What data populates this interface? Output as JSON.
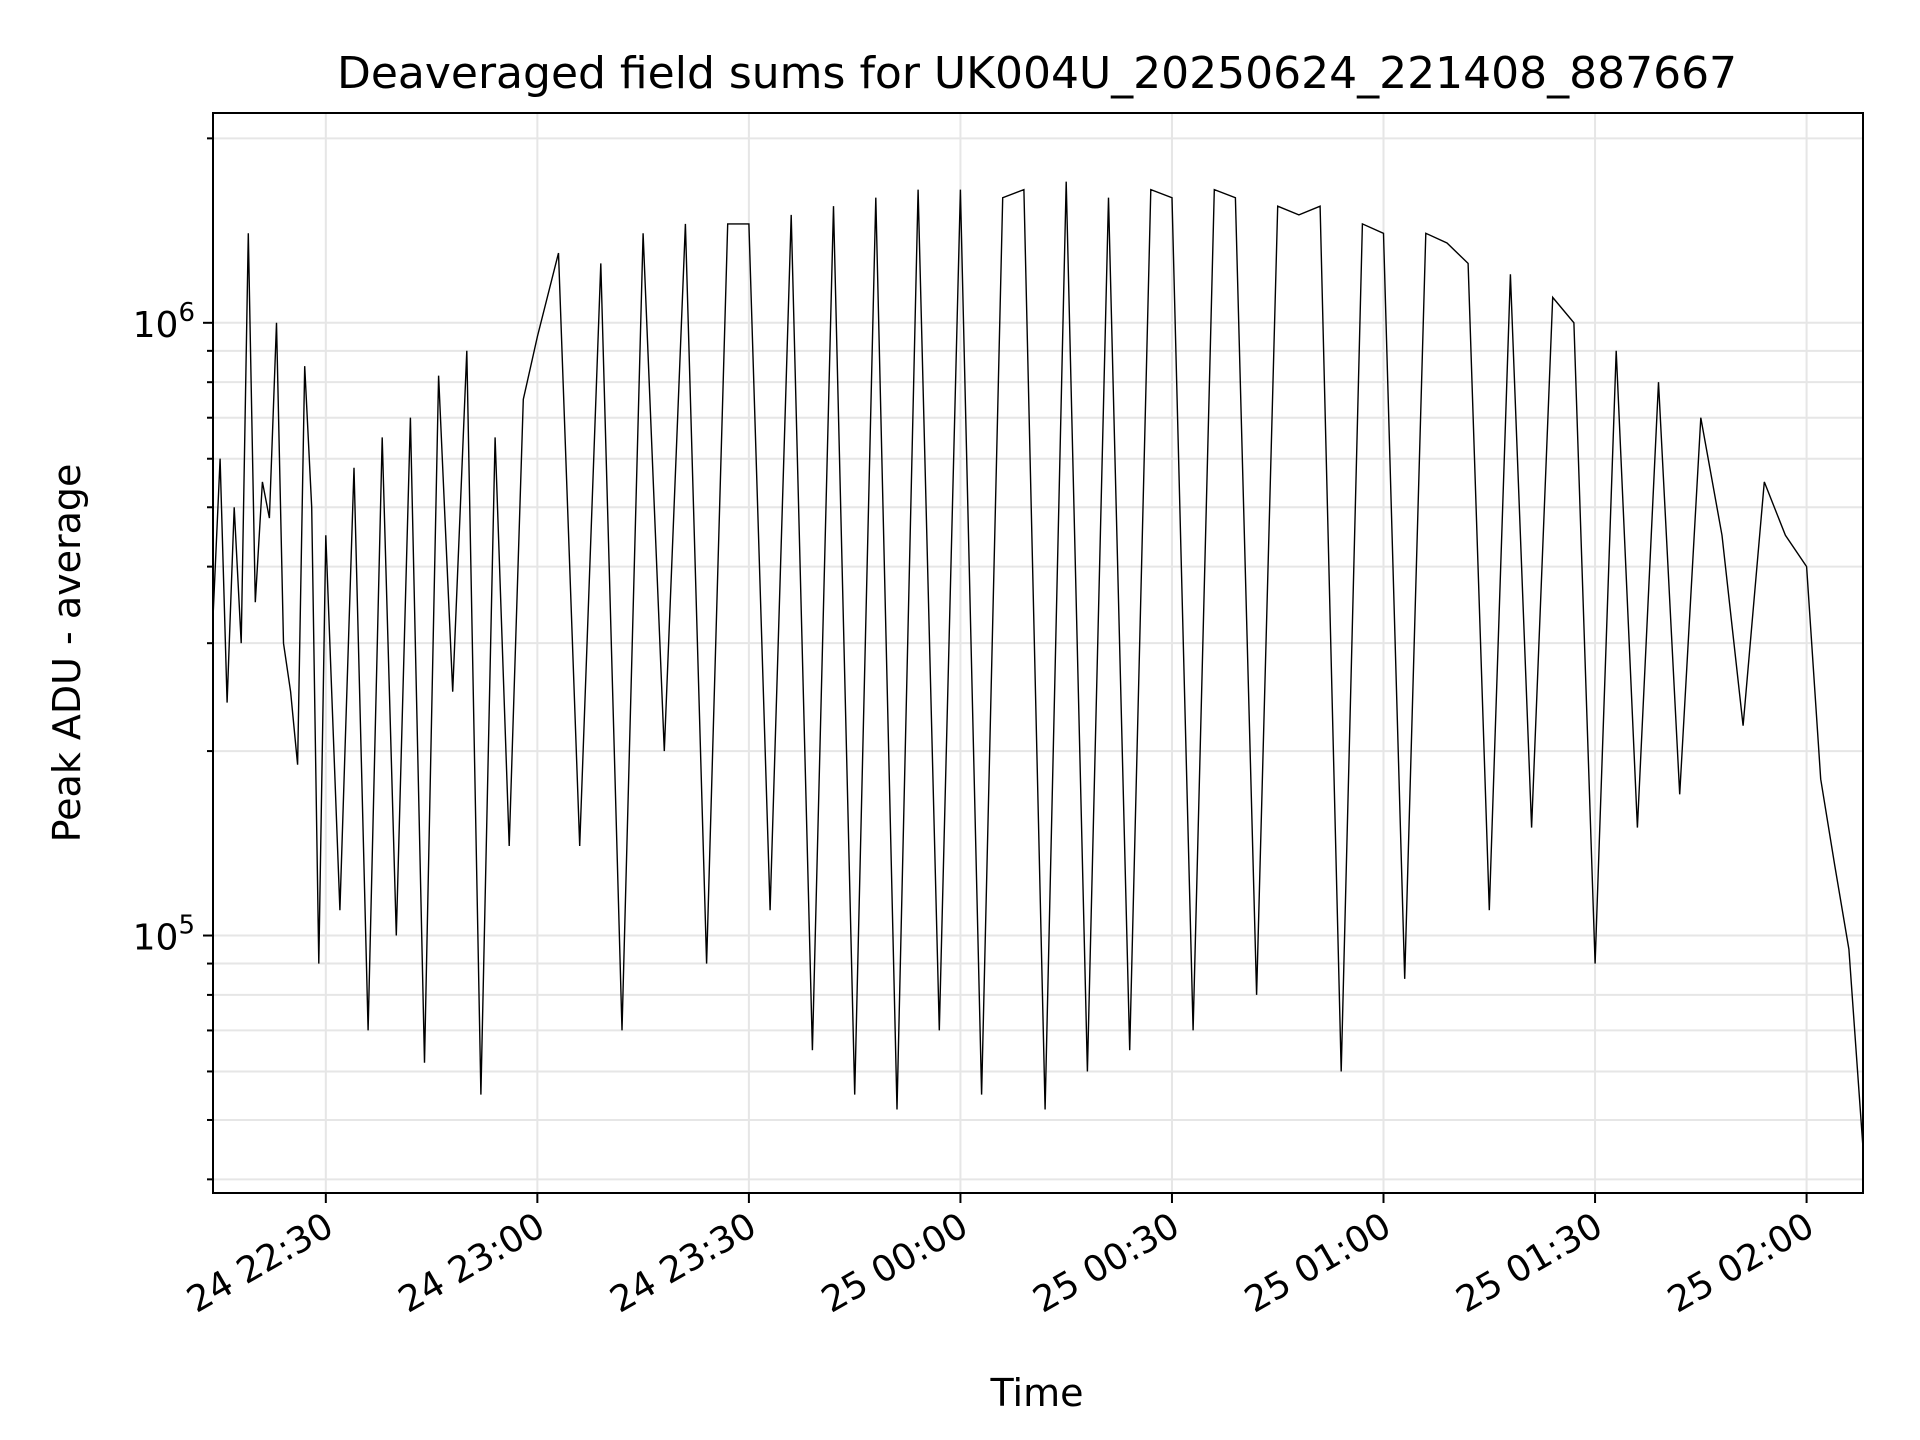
{
  "chart_data": {
    "type": "line",
    "title": "Deaveraged field sums for UK004U_20250624_221408_887667",
    "xlabel": "Time",
    "ylabel": "Peak ADU - average",
    "yscale": "log",
    "ylim": [
      38000,
      2200000
    ],
    "xlim": [
      "2025-06-24 22:14",
      "2025-06-25 02:08"
    ],
    "grid": true,
    "line_color": "#000000",
    "grid_color": "#e6e6e6",
    "x_ticks": [
      {
        "value": "2025-06-24 22:30",
        "label": "24 22:30"
      },
      {
        "value": "2025-06-24 23:00",
        "label": "24 23:00"
      },
      {
        "value": "2025-06-24 23:30",
        "label": "24 23:30"
      },
      {
        "value": "2025-06-25 00:00",
        "label": "25 00:00"
      },
      {
        "value": "2025-06-25 00:30",
        "label": "25 00:30"
      },
      {
        "value": "2025-06-25 01:00",
        "label": "25 01:00"
      },
      {
        "value": "2025-06-25 01:30",
        "label": "25 01:30"
      },
      {
        "value": "2025-06-25 02:00",
        "label": "25 02:00"
      }
    ],
    "y_ticks": [
      {
        "value": 100000,
        "base": "10",
        "exp": "5"
      },
      {
        "value": 1000000,
        "base": "10",
        "exp": "6"
      }
    ],
    "series": [
      {
        "x": [
          "2025-06-24 22:14",
          "2025-06-24 22:15",
          "2025-06-24 22:16",
          "2025-06-24 22:17",
          "2025-06-24 22:18",
          "2025-06-24 22:19",
          "2025-06-24 22:20",
          "2025-06-24 22:21",
          "2025-06-24 22:22",
          "2025-06-24 22:23",
          "2025-06-24 22:24",
          "2025-06-24 22:25",
          "2025-06-24 22:26",
          "2025-06-24 22:27",
          "2025-06-24 22:28",
          "2025-06-24 22:29",
          "2025-06-24 22:30",
          "2025-06-24 22:32",
          "2025-06-24 22:34",
          "2025-06-24 22:36",
          "2025-06-24 22:38",
          "2025-06-24 22:40",
          "2025-06-24 22:42",
          "2025-06-24 22:44",
          "2025-06-24 22:46",
          "2025-06-24 22:48",
          "2025-06-24 22:50",
          "2025-06-24 22:52",
          "2025-06-24 22:54",
          "2025-06-24 22:56",
          "2025-06-24 22:58",
          "2025-06-24 23:00",
          "2025-06-24 23:03",
          "2025-06-24 23:06",
          "2025-06-24 23:09",
          "2025-06-24 23:12",
          "2025-06-24 23:15",
          "2025-06-24 23:18",
          "2025-06-24 23:21",
          "2025-06-24 23:24",
          "2025-06-24 23:27",
          "2025-06-24 23:30",
          "2025-06-24 23:33",
          "2025-06-24 23:36",
          "2025-06-24 23:39",
          "2025-06-24 23:42",
          "2025-06-24 23:45",
          "2025-06-24 23:48",
          "2025-06-24 23:51",
          "2025-06-24 23:54",
          "2025-06-24 23:57",
          "2025-06-25 00:00",
          "2025-06-25 00:03",
          "2025-06-25 00:06",
          "2025-06-25 00:09",
          "2025-06-25 00:12",
          "2025-06-25 00:15",
          "2025-06-25 00:18",
          "2025-06-25 00:21",
          "2025-06-25 00:24",
          "2025-06-25 00:27",
          "2025-06-25 00:30",
          "2025-06-25 00:33",
          "2025-06-25 00:36",
          "2025-06-25 00:39",
          "2025-06-25 00:42",
          "2025-06-25 00:45",
          "2025-06-25 00:48",
          "2025-06-25 00:51",
          "2025-06-25 00:54",
          "2025-06-25 00:57",
          "2025-06-25 01:00",
          "2025-06-25 01:03",
          "2025-06-25 01:06",
          "2025-06-25 01:09",
          "2025-06-25 01:12",
          "2025-06-25 01:15",
          "2025-06-25 01:18",
          "2025-06-25 01:21",
          "2025-06-25 01:24",
          "2025-06-25 01:27",
          "2025-06-25 01:30",
          "2025-06-25 01:33",
          "2025-06-25 01:36",
          "2025-06-25 01:39",
          "2025-06-25 01:42",
          "2025-06-25 01:45",
          "2025-06-25 01:48",
          "2025-06-25 01:51",
          "2025-06-25 01:54",
          "2025-06-25 01:57",
          "2025-06-25 02:00",
          "2025-06-25 02:02",
          "2025-06-25 02:04",
          "2025-06-25 02:06",
          "2025-06-25 02:08"
        ],
        "y": [
          330000,
          600000,
          240000,
          500000,
          300000,
          1400000,
          350000,
          550000,
          480000,
          1000000,
          300000,
          250000,
          190000,
          850000,
          500000,
          90000,
          450000,
          110000,
          580000,
          70000,
          650000,
          100000,
          700000,
          62000,
          820000,
          250000,
          900000,
          55000,
          650000,
          140000,
          750000,
          950000,
          1300000,
          140000,
          1250000,
          70000,
          1400000,
          200000,
          1450000,
          90000,
          1450000,
          1450000,
          110000,
          1500000,
          65000,
          1550000,
          55000,
          1600000,
          52000,
          1650000,
          70000,
          1650000,
          55000,
          1600000,
          1650000,
          52000,
          1700000,
          60000,
          1600000,
          65000,
          1650000,
          1600000,
          70000,
          1650000,
          1600000,
          80000,
          1550000,
          1500000,
          1550000,
          60000,
          1450000,
          1400000,
          85000,
          1400000,
          1350000,
          1250000,
          110000,
          1200000,
          150000,
          1100000,
          1000000,
          90000,
          900000,
          150000,
          800000,
          170000,
          700000,
          450000,
          220000,
          550000,
          450000,
          400000,
          180000,
          130000,
          95000,
          45000
        ]
      }
    ]
  }
}
